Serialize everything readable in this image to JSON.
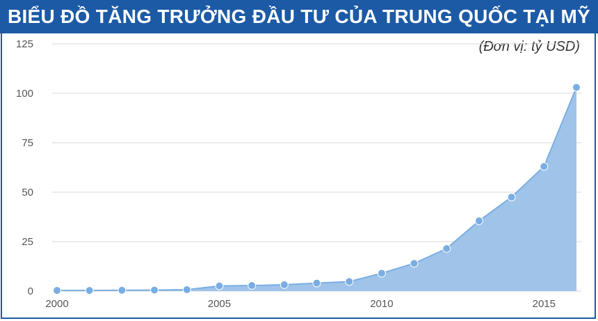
{
  "chart_data": {
    "type": "area",
    "title": "BIỂU ĐỒ TĂNG TRƯỞNG ĐẦU TƯ CỦA TRUNG QUỐC TẠI MỸ",
    "unit_label": "(Đơn vị: tỷ USD)",
    "xlabel": "",
    "ylabel": "",
    "x": [
      2000,
      2001,
      2002,
      2003,
      2004,
      2005,
      2006,
      2007,
      2008,
      2009,
      2010,
      2011,
      2012,
      2013,
      2014,
      2015,
      2016
    ],
    "values": [
      0.3,
      0.3,
      0.4,
      0.5,
      0.7,
      2.6,
      2.8,
      3.2,
      4.0,
      4.8,
      9.0,
      14.0,
      21.5,
      35.5,
      47.5,
      63.0,
      103.0
    ],
    "x_ticks": [
      "2000",
      "2005",
      "2010",
      "2015"
    ],
    "y_ticks": [
      "0",
      "25",
      "50",
      "75",
      "100",
      "125"
    ],
    "xlim": [
      2000,
      2016
    ],
    "ylim": [
      0,
      125
    ],
    "grid": true,
    "colors": {
      "title_bar": "#1c5aa6",
      "area_fill": "#9fc3e9",
      "line": "#7aaee2",
      "marker": "#7aaee2",
      "grid": "#d8d8d8"
    }
  }
}
